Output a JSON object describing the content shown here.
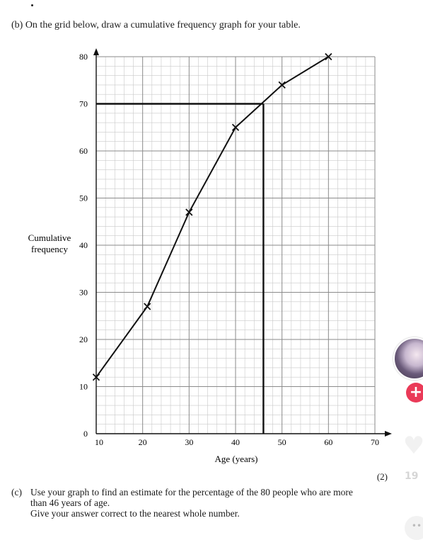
{
  "question_b": {
    "text": "(b) On the grid below, draw a cumulative frequency graph for your table."
  },
  "marks": "(2)",
  "question_c": {
    "label": "(c)",
    "line1": "Use your graph to find an estimate for the percentage of the 80 people who are more",
    "line2": "than 46 years of age.",
    "line3": "Give your answer correct to the nearest whole number."
  },
  "overlay": {
    "like_count": "19",
    "plus_symbol": "+",
    "heart_icon": "heart-icon",
    "more_icon": "more-icon"
  },
  "chart_data": {
    "type": "line",
    "title": "",
    "xlabel": "Age (years)",
    "ylabel": "Cumulative frequency",
    "xlim": [
      10,
      70
    ],
    "ylim": [
      0,
      80
    ],
    "x_ticks": [
      10,
      20,
      30,
      40,
      50,
      60,
      70
    ],
    "y_ticks": [
      0,
      10,
      20,
      30,
      40,
      50,
      60,
      70,
      80
    ],
    "grid": true,
    "series": [
      {
        "points": [
          {
            "x": 10,
            "y": 12
          },
          {
            "x": 21,
            "y": 27
          },
          {
            "x": 30,
            "y": 47
          },
          {
            "x": 40,
            "y": 65
          },
          {
            "x": 50,
            "y": 74
          },
          {
            "x": 60,
            "y": 80
          }
        ]
      }
    ],
    "reading_line": {
      "x": 46,
      "y": 70
    }
  }
}
